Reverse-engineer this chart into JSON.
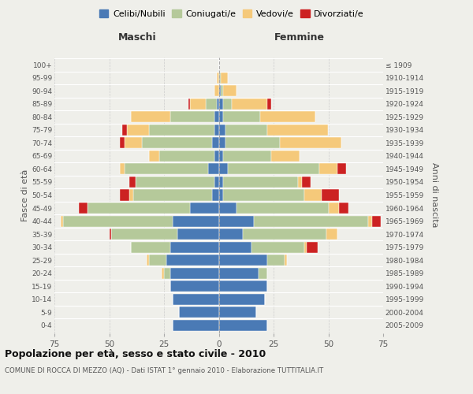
{
  "age_groups": [
    "0-4",
    "5-9",
    "10-14",
    "15-19",
    "20-24",
    "25-29",
    "30-34",
    "35-39",
    "40-44",
    "45-49",
    "50-54",
    "55-59",
    "60-64",
    "65-69",
    "70-74",
    "75-79",
    "80-84",
    "85-89",
    "90-94",
    "95-99",
    "100+"
  ],
  "birth_years": [
    "2005-2009",
    "2000-2004",
    "1995-1999",
    "1990-1994",
    "1985-1989",
    "1980-1984",
    "1975-1979",
    "1970-1974",
    "1965-1969",
    "1960-1964",
    "1955-1959",
    "1950-1954",
    "1945-1949",
    "1940-1944",
    "1935-1939",
    "1930-1934",
    "1925-1929",
    "1920-1924",
    "1915-1919",
    "1910-1914",
    "≤ 1909"
  ],
  "male": {
    "celibi": [
      21,
      18,
      21,
      22,
      22,
      24,
      22,
      19,
      21,
      13,
      3,
      2,
      5,
      2,
      3,
      2,
      2,
      1,
      0,
      0,
      0
    ],
    "coniugati": [
      0,
      0,
      0,
      0,
      3,
      8,
      18,
      30,
      50,
      47,
      36,
      36,
      38,
      25,
      32,
      30,
      20,
      5,
      0,
      0,
      0
    ],
    "vedovi": [
      0,
      0,
      0,
      0,
      1,
      1,
      0,
      0,
      1,
      0,
      2,
      0,
      2,
      5,
      8,
      10,
      18,
      7,
      2,
      1,
      0
    ],
    "divorziati": [
      0,
      0,
      0,
      0,
      0,
      0,
      0,
      1,
      0,
      4,
      4,
      3,
      0,
      0,
      2,
      2,
      0,
      1,
      0,
      0,
      0
    ]
  },
  "female": {
    "nubili": [
      22,
      17,
      21,
      22,
      18,
      22,
      15,
      11,
      16,
      8,
      2,
      2,
      4,
      2,
      3,
      3,
      2,
      2,
      1,
      0,
      0
    ],
    "coniugate": [
      0,
      0,
      0,
      0,
      4,
      8,
      24,
      38,
      52,
      42,
      37,
      34,
      42,
      22,
      25,
      19,
      17,
      4,
      1,
      1,
      0
    ],
    "vedove": [
      0,
      0,
      0,
      0,
      0,
      1,
      1,
      5,
      2,
      5,
      8,
      2,
      8,
      13,
      28,
      28,
      25,
      16,
      6,
      3,
      0
    ],
    "divorziate": [
      0,
      0,
      0,
      0,
      0,
      0,
      5,
      0,
      4,
      4,
      8,
      4,
      4,
      0,
      0,
      0,
      0,
      2,
      0,
      0,
      0
    ]
  },
  "colors": {
    "celibi": "#4a7ab5",
    "coniugati": "#b5c99a",
    "vedovi": "#f5c97a",
    "divorziati": "#cc2222"
  },
  "xlim": 75,
  "title": "Popolazione per età, sesso e stato civile - 2010",
  "subtitle": "COMUNE DI ROCCA DI MEZZO (AQ) - Dati ISTAT 1° gennaio 2010 - Elaborazione TUTTITALIA.IT",
  "ylabel_left": "Fasce di età",
  "ylabel_right": "Anni di nascita",
  "xlabel_maschi": "Maschi",
  "xlabel_femmine": "Femmine",
  "legend_labels": [
    "Celibi/Nubili",
    "Coniugati/e",
    "Vedovi/e",
    "Divorziati/e"
  ],
  "bg_color": "#efefea",
  "bar_linewidth": 0.3,
  "bar_edgecolor": "#ffffff"
}
